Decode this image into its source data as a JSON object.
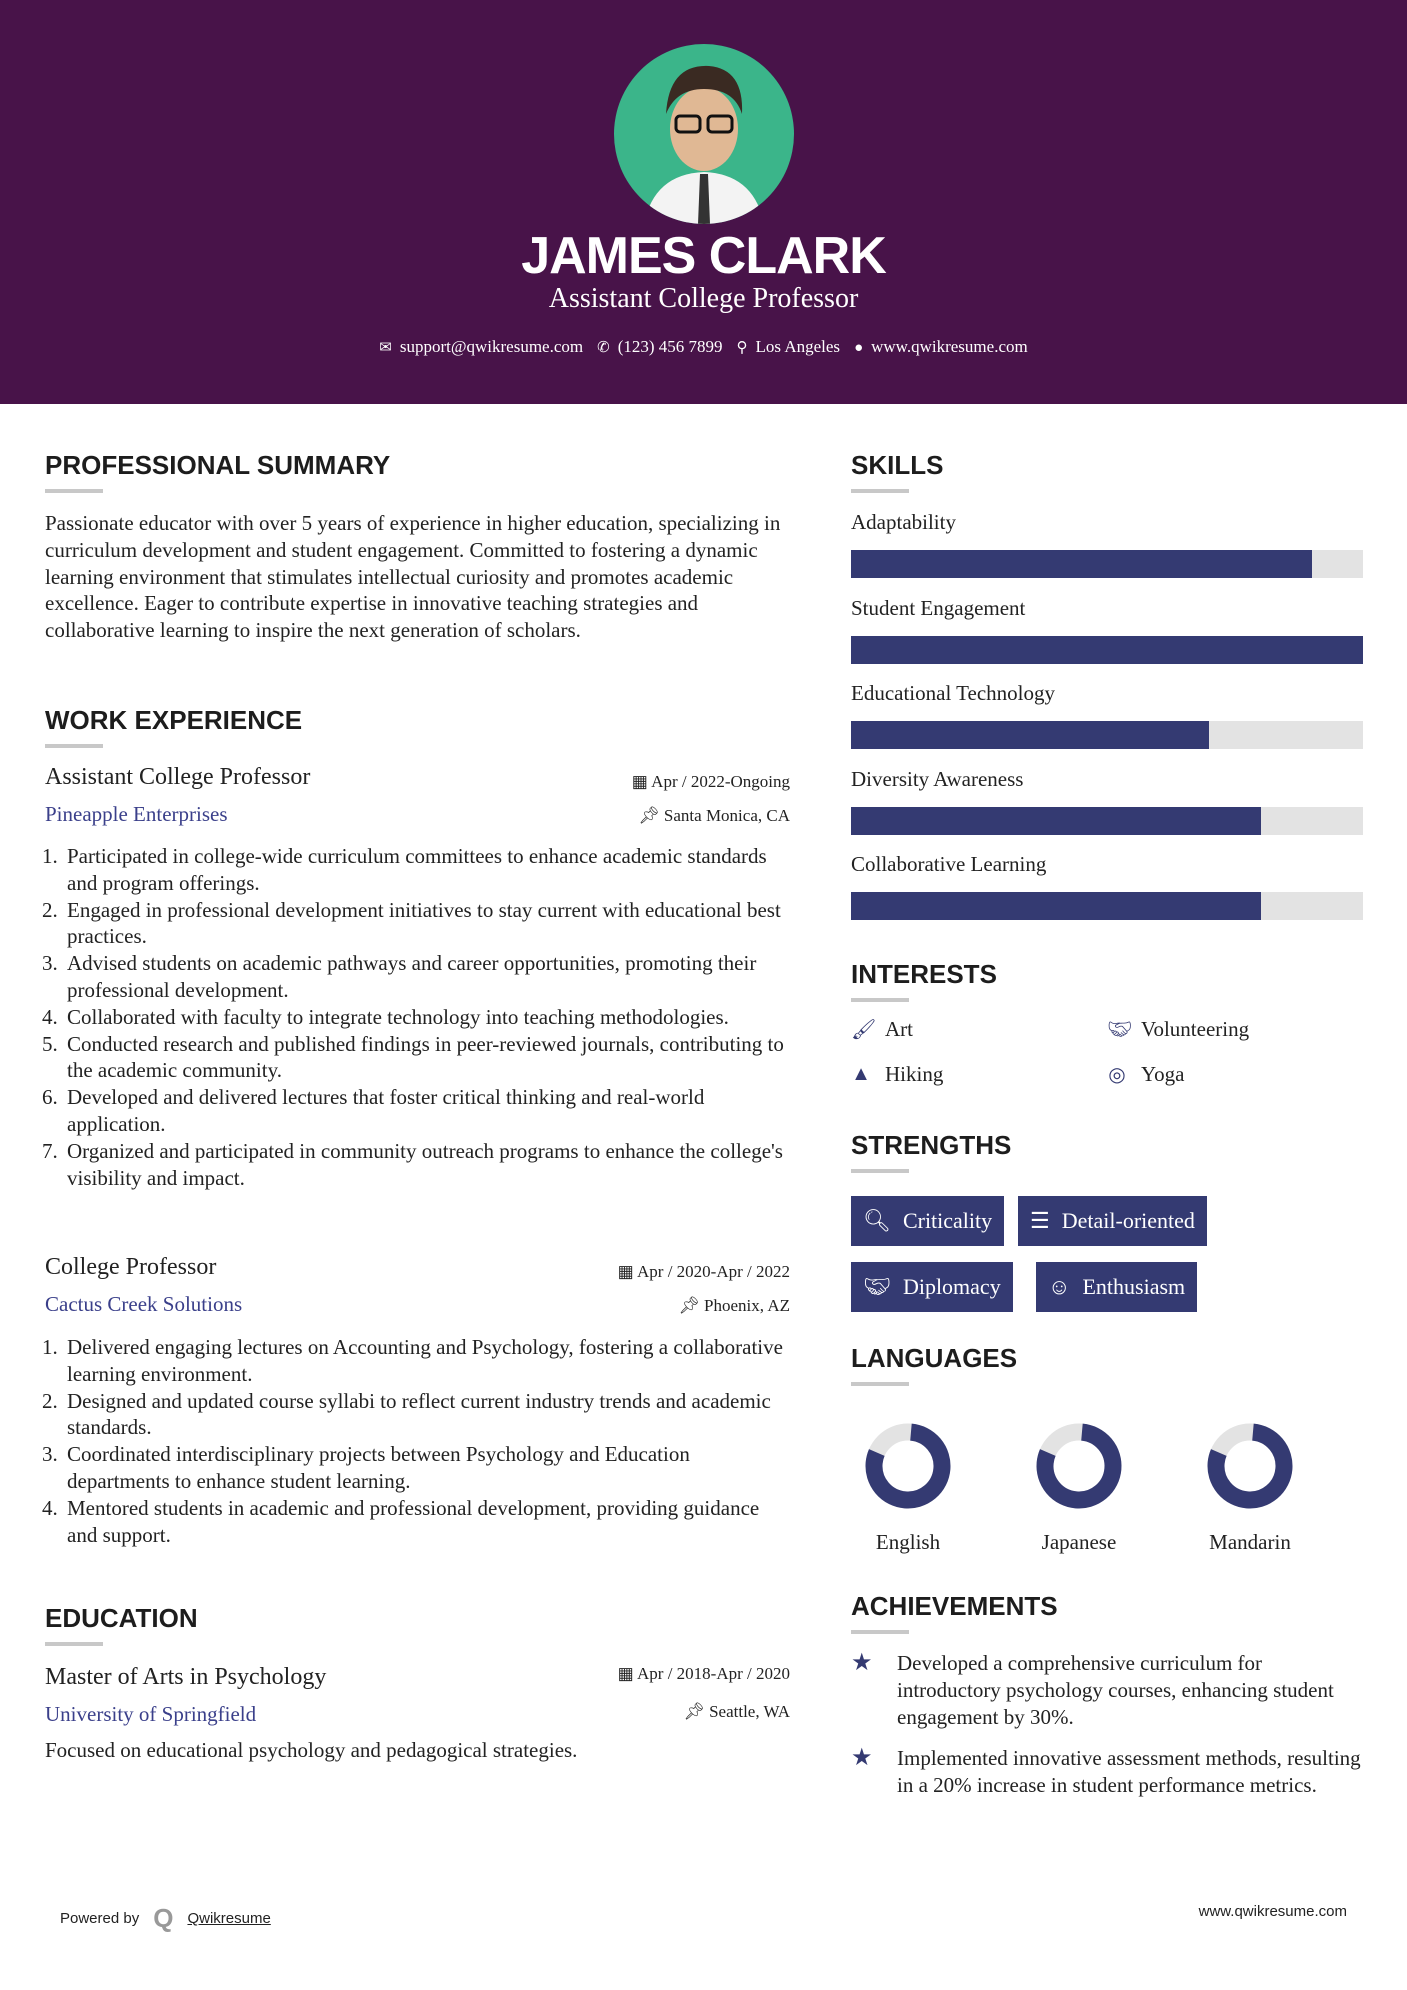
{
  "header": {
    "name": "JAMES CLARK",
    "title": "Assistant College Professor",
    "email": "support@qwikresume.com",
    "phone": "(123) 456 7899",
    "location": "Los Angeles",
    "website": "www.qwikresume.com"
  },
  "summary": {
    "heading": "PROFESSIONAL SUMMARY",
    "text": "Passionate educator with over 5 years of experience in higher education, specializing in curriculum development and student engagement. Committed to fostering a dynamic learning environment that stimulates intellectual curiosity and promotes academic excellence. Eager to contribute expertise in innovative teaching strategies and collaborative learning to inspire the next generation of scholars."
  },
  "work": {
    "heading": "WORK EXPERIENCE",
    "jobs": [
      {
        "title": "Assistant College Professor",
        "company": "Pineapple Enterprises",
        "date": "Apr / 2022-Ongoing",
        "location": "Santa Monica, CA",
        "bullets": [
          "Participated in college-wide curriculum committees to enhance academic standards and program offerings.",
          "Engaged in professional development initiatives to stay current with educational best practices.",
          "Advised students on academic pathways and career opportunities, promoting their professional development.",
          "Collaborated with faculty to integrate technology into teaching methodologies.",
          "Conducted research and published findings in peer-reviewed journals, contributing to the academic community.",
          "Developed and delivered lectures that foster critical thinking and real-world application.",
          "Organized and participated in community outreach programs to enhance the college's visibility and impact."
        ]
      },
      {
        "title": "College Professor",
        "company": "Cactus Creek Solutions",
        "date": "Apr / 2020-Apr / 2022",
        "location": "Phoenix, AZ",
        "bullets": [
          "Delivered engaging lectures on Accounting and Psychology, fostering a collaborative learning environment.",
          "Designed and updated course syllabi to reflect current industry trends and academic standards.",
          "Coordinated interdisciplinary projects between Psychology and Education departments to enhance student learning.",
          "Mentored students in academic and professional development, providing guidance and support."
        ]
      }
    ]
  },
  "education": {
    "heading": "EDUCATION",
    "degree": "Master of Arts in Psychology",
    "school": "University of Springfield",
    "date": "Apr / 2018-Apr / 2020",
    "location": "Seattle, WA",
    "text": "Focused on educational psychology and pedagogical strategies."
  },
  "skills": {
    "heading": "SKILLS",
    "items": [
      {
        "label": "Adaptability",
        "level": 90
      },
      {
        "label": "Student Engagement",
        "level": 100
      },
      {
        "label": "Educational Technology",
        "level": 70
      },
      {
        "label": "Diversity Awareness",
        "level": 80
      },
      {
        "label": "Collaborative Learning",
        "level": 80
      }
    ]
  },
  "interests": {
    "heading": "INTERESTS",
    "items": [
      {
        "label": "Art",
        "icon": "paintbrush-icon"
      },
      {
        "label": "Volunteering",
        "icon": "handshake-icon"
      },
      {
        "label": "Hiking",
        "icon": "tree-icon"
      },
      {
        "label": "Yoga",
        "icon": "lifering-icon"
      }
    ]
  },
  "strengths": {
    "heading": "STRENGTHS",
    "items": [
      {
        "label": "Criticality",
        "icon": "search-icon"
      },
      {
        "label": "Detail-oriented",
        "icon": "list-icon"
      },
      {
        "label": "Diplomacy",
        "icon": "handshake-icon"
      },
      {
        "label": "Enthusiasm",
        "icon": "smile-icon"
      }
    ]
  },
  "languages": {
    "heading": "LANGUAGES",
    "items": [
      {
        "label": "English",
        "level": 80
      },
      {
        "label": "Japanese",
        "level": 80
      },
      {
        "label": "Mandarin",
        "level": 80
      }
    ]
  },
  "achievements": {
    "heading": "ACHIEVEMENTS",
    "items": [
      "Developed a comprehensive curriculum for introductory psychology courses, enhancing student engagement by 30%.",
      "Implemented innovative assessment methods, resulting in a 20% increase in student performance metrics."
    ]
  },
  "footer": {
    "powered_by": "Powered by",
    "brand": "Qwikresume",
    "website": "www.qwikresume.com"
  },
  "colors": {
    "header_bg": "#481349",
    "accent": "#343a72",
    "link": "#3a3f8a"
  }
}
